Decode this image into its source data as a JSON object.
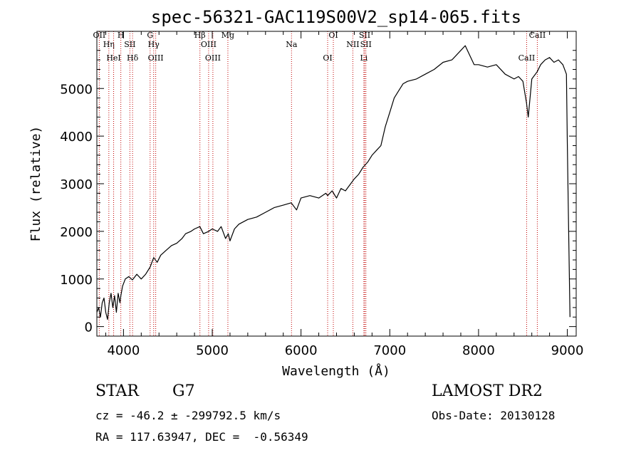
{
  "chart_data": {
    "type": "line",
    "title": "spec-56321-GAC119S00V2_sp14-065.fits",
    "xlabel": "Wavelength (Å)",
    "ylabel": "Flux (relative)",
    "xlim": [
      3700,
      9100
    ],
    "ylim": [
      -200,
      6200
    ],
    "xticks": [
      4000,
      5000,
      6000,
      7000,
      8000,
      9000
    ],
    "yticks": [
      0,
      1000,
      2000,
      3000,
      4000,
      5000
    ],
    "grid": false,
    "series": [
      {
        "x": [
          3700,
          3720,
          3740,
          3760,
          3780,
          3800,
          3820,
          3840,
          3860,
          3880,
          3900,
          3920,
          3940,
          3960,
          3970,
          3990,
          4020,
          4060,
          4100,
          4150,
          4200,
          4250,
          4300,
          4340,
          4380,
          4420,
          4480,
          4540,
          4600,
          4660,
          4700,
          4760,
          4800,
          4860,
          4900,
          4960,
          5000,
          5060,
          5100,
          5150,
          5180,
          5200,
          5250,
          5300,
          5400,
          5500,
          5600,
          5700,
          5800,
          5890,
          5950,
          6000,
          6100,
          6200,
          6280,
          6300,
          6350,
          6400,
          6450,
          6500,
          6560,
          6600,
          6650,
          6700,
          6750,
          6800,
          6850,
          6900,
          6950,
          7000,
          7050,
          7100,
          7150,
          7200,
          7300,
          7400,
          7500,
          7600,
          7700,
          7800,
          7850,
          7900,
          7950,
          8000,
          8100,
          8200,
          8300,
          8400,
          8450,
          8500,
          8540,
          8560,
          8600,
          8660,
          8700,
          8750,
          8800,
          8850,
          8900,
          8950,
          8990,
          9000,
          9010,
          9030
        ],
        "y": [
          300,
          400,
          200,
          500,
          600,
          300,
          150,
          500,
          700,
          400,
          650,
          300,
          700,
          500,
          650,
          850,
          1000,
          1050,
          980,
          1100,
          1000,
          1100,
          1250,
          1450,
          1350,
          1500,
          1600,
          1700,
          1750,
          1850,
          1950,
          2000,
          2050,
          2100,
          1950,
          2000,
          2050,
          2000,
          2100,
          1850,
          1950,
          1800,
          2050,
          2150,
          2250,
          2300,
          2400,
          2500,
          2550,
          2600,
          2450,
          2700,
          2750,
          2700,
          2800,
          2750,
          2850,
          2700,
          2900,
          2850,
          3000,
          3100,
          3200,
          3350,
          3450,
          3600,
          3700,
          3800,
          4200,
          4500,
          4800,
          4950,
          5100,
          5150,
          5200,
          5300,
          5400,
          5550,
          5600,
          5800,
          5900,
          5700,
          5500,
          5500,
          5450,
          5500,
          5300,
          5200,
          5250,
          5150,
          4700,
          4400,
          5200,
          5350,
          5500,
          5600,
          5650,
          5550,
          5600,
          5500,
          5300,
          3900,
          2600,
          200
        ]
      }
    ],
    "lines": [
      {
        "x": 3727,
        "labels": [
          "OII"
        ]
      },
      {
        "x": 3835,
        "labels": [
          "H&#951;"
        ]
      },
      {
        "x": 3889,
        "labels": [
          "HeI"
        ]
      },
      {
        "x": 3970,
        "labels": [
          "H"
        ]
      },
      {
        "x": 4072,
        "labels": [
          "SII"
        ]
      },
      {
        "x": 4102,
        "labels": [
          "H&#948;"
        ]
      },
      {
        "x": 4300,
        "labels": [
          "G"
        ]
      },
      {
        "x": 4340,
        "labels": [
          "H&#947;"
        ]
      },
      {
        "x": 4363,
        "labels": [
          "OIII"
        ]
      },
      {
        "x": 4861,
        "labels": [
          "H&#946;"
        ]
      },
      {
        "x": 4959,
        "labels": [
          "OIII"
        ]
      },
      {
        "x": 5007,
        "labels": [
          "OIII"
        ]
      },
      {
        "x": 5176,
        "labels": [
          "Mg"
        ]
      },
      {
        "x": 5893,
        "labels": [
          "Na"
        ]
      },
      {
        "x": 6300,
        "labels": [
          "OI"
        ]
      },
      {
        "x": 6364,
        "labels": [
          "OI"
        ]
      },
      {
        "x": 6584,
        "labels": [
          "NII"
        ]
      },
      {
        "x": 6708,
        "labels": [
          "Li"
        ]
      },
      {
        "x": 6717,
        "labels": [
          "SII"
        ]
      },
      {
        "x": 6731,
        "labels": [
          "SII"
        ]
      },
      {
        "x": 8542,
        "labels": [
          "CaII"
        ]
      },
      {
        "x": 8662,
        "labels": [
          "CaII"
        ]
      }
    ],
    "text_labels": [
      "OII",
      "H&#951;",
      "HeI",
      "H",
      "SII",
      "H&#948;",
      "G",
      "H&#947;",
      "OIII",
      "H&#946;",
      "OIII",
      "OIII",
      "Mg",
      "Na",
      "OI",
      "OI",
      "NII",
      "Li",
      "SII",
      "SII",
      "CaII",
      "CaII"
    ]
  },
  "info": {
    "obj_class": "STAR",
    "subclass": "G7",
    "cz": "cz = -46.2 ± -299792.5 km/s",
    "radec": "RA = 117.63947, DEC =  -0.56349",
    "survey": "LAMOST DR2",
    "obs_date": "Obs-Date: 20130128"
  }
}
